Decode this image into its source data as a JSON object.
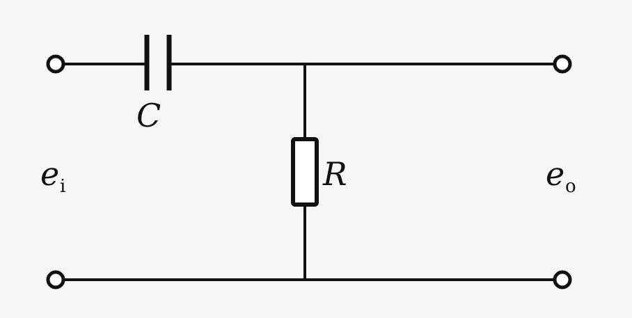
{
  "labels": {
    "capacitor": "C",
    "resistor": "R",
    "input_main": "e",
    "input_sub": "i",
    "output_main": "e",
    "output_sub": "o"
  },
  "colors": {
    "ink": "#111111",
    "paper": "#f7f7f5"
  }
}
